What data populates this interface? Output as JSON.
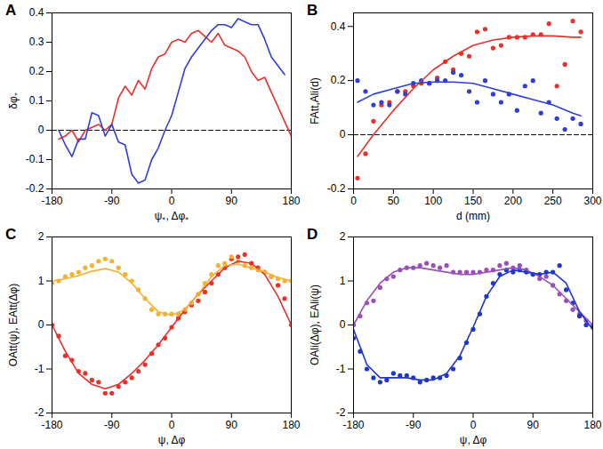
{
  "chart_data": [
    {
      "type": "line",
      "title": "A",
      "x_label": "ψ₊, Δφ₊",
      "y_label": "δφ₊",
      "xlim": [
        -180,
        180
      ],
      "xticks": [
        -180,
        -90,
        0,
        90,
        180
      ],
      "ylim": [
        -0.2,
        0.4
      ],
      "yticks": [
        -0.2,
        -0.1,
        0,
        0.1,
        0.2,
        0.3,
        0.4
      ],
      "series": [
        {
          "type": "line",
          "line_style": "dashed",
          "color": "#000000",
          "x": [
            -180,
            180
          ],
          "values": [
            0,
            0
          ]
        },
        {
          "type": "line",
          "line_style": "solid",
          "color": "#e8312b",
          "x": [
            -170,
            -160,
            -150,
            -140,
            -130,
            -120,
            -110,
            -100,
            -90,
            -80,
            -70,
            -60,
            -50,
            -40,
            -30,
            -20,
            -10,
            0,
            10,
            20,
            30,
            40,
            50,
            60,
            70,
            80,
            90,
            100,
            110,
            120,
            130,
            140,
            150,
            160,
            170,
            180
          ],
          "values": [
            -0.03,
            -0.02,
            0.0,
            -0.04,
            0.0,
            0.01,
            0.02,
            0.0,
            0.02,
            0.11,
            0.15,
            0.12,
            0.17,
            0.14,
            0.21,
            0.25,
            0.26,
            0.3,
            0.31,
            0.3,
            0.33,
            0.34,
            0.32,
            0.3,
            0.33,
            0.29,
            0.28,
            0.27,
            0.25,
            0.2,
            0.17,
            0.18,
            0.13,
            0.08,
            0.03,
            -0.02
          ]
        },
        {
          "type": "line",
          "line_style": "solid",
          "color": "#2f3fd6",
          "x": [
            -170,
            -160,
            -150,
            -140,
            -130,
            -120,
            -110,
            -100,
            -90,
            -80,
            -70,
            -60,
            -50,
            -40,
            -30,
            -20,
            -10,
            0,
            10,
            20,
            30,
            40,
            50,
            60,
            70,
            80,
            90,
            100,
            110,
            120,
            130,
            140,
            150,
            160,
            170
          ],
          "values": [
            0.0,
            -0.05,
            -0.09,
            -0.03,
            -0.03,
            0.06,
            0.05,
            -0.02,
            0.02,
            -0.04,
            -0.05,
            -0.15,
            -0.18,
            -0.17,
            -0.1,
            -0.06,
            0.0,
            0.05,
            0.13,
            0.21,
            0.25,
            0.28,
            0.31,
            0.34,
            0.36,
            0.36,
            0.35,
            0.38,
            0.37,
            0.36,
            0.36,
            0.31,
            0.25,
            0.22,
            0.19
          ]
        }
      ]
    },
    {
      "type": "line",
      "title": "B",
      "x_label": "d (mm)",
      "y_label": "FAtt,Ali(d)",
      "xlim": [
        0,
        300
      ],
      "xticks": [
        0,
        50,
        100,
        150,
        200,
        250,
        300
      ],
      "ylim": [
        -0.2,
        0.45
      ],
      "yticks": [
        -0.2,
        0,
        0.2,
        0.4
      ],
      "series": [
        {
          "type": "line",
          "line_style": "dashed",
          "color": "#000000",
          "x": [
            0,
            300
          ],
          "values": [
            0,
            0
          ]
        },
        {
          "type": "scatter",
          "marker": "circle",
          "color": "#e8312b",
          "x": [
            5,
            15,
            25,
            35,
            45,
            55,
            65,
            75,
            85,
            95,
            105,
            115,
            125,
            135,
            145,
            155,
            165,
            175,
            185,
            195,
            205,
            215,
            225,
            235,
            245,
            255,
            265,
            275,
            285
          ],
          "values": [
            -0.16,
            -0.07,
            0.05,
            0.11,
            0.12,
            0.16,
            0.16,
            0.18,
            0.19,
            0.19,
            0.21,
            0.27,
            0.24,
            0.3,
            0.29,
            0.38,
            0.39,
            0.32,
            0.33,
            0.36,
            0.36,
            0.36,
            0.37,
            0.37,
            0.41,
            0.18,
            0.26,
            0.42,
            0.38
          ]
        },
        {
          "type": "scatter",
          "marker": "circle",
          "color": "#2f3fd6",
          "x": [
            5,
            15,
            25,
            35,
            45,
            55,
            65,
            75,
            85,
            95,
            105,
            115,
            125,
            135,
            145,
            155,
            165,
            175,
            185,
            195,
            205,
            215,
            225,
            235,
            245,
            255,
            265,
            275,
            285
          ],
          "values": [
            0.2,
            0.16,
            0.11,
            0.12,
            0.11,
            0.16,
            0.15,
            0.19,
            0.2,
            0.19,
            0.2,
            0.2,
            0.23,
            0.22,
            0.16,
            0.12,
            0.2,
            0.15,
            0.12,
            0.15,
            0.09,
            0.18,
            0.2,
            0.08,
            0.12,
            0.06,
            0.02,
            0.06,
            0.04
          ]
        },
        {
          "type": "line",
          "line_style": "solid",
          "color": "#e8312b",
          "x": [
            5,
            25,
            50,
            75,
            100,
            125,
            150,
            175,
            200,
            225,
            250,
            275,
            285
          ],
          "values": [
            -0.08,
            0.0,
            0.09,
            0.17,
            0.24,
            0.29,
            0.33,
            0.35,
            0.36,
            0.365,
            0.365,
            0.36,
            0.36
          ]
        },
        {
          "type": "line",
          "line_style": "solid",
          "color": "#2f3fd6",
          "x": [
            5,
            25,
            50,
            75,
            100,
            125,
            150,
            175,
            200,
            225,
            250,
            275,
            285
          ],
          "values": [
            0.12,
            0.15,
            0.17,
            0.19,
            0.195,
            0.195,
            0.19,
            0.17,
            0.15,
            0.13,
            0.11,
            0.08,
            0.07
          ]
        }
      ]
    },
    {
      "type": "line",
      "title": "C",
      "x_label": "ψ, Δφ",
      "y_label": "OAtt(ψ), EAtt(Δφ)",
      "xlim": [
        -180,
        180
      ],
      "xticks": [
        -180,
        -90,
        0,
        90,
        180
      ],
      "ylim": [
        -2,
        2
      ],
      "yticks": [
        -2,
        -1,
        0,
        1,
        2
      ],
      "series": [
        {
          "type": "scatter",
          "marker": "circle",
          "color": "#e8312b",
          "x": [
            -180,
            -170,
            -160,
            -150,
            -140,
            -130,
            -120,
            -110,
            -100,
            -90,
            -80,
            -70,
            -60,
            -50,
            -40,
            -30,
            -20,
            -10,
            0,
            10,
            20,
            30,
            40,
            50,
            60,
            70,
            80,
            90,
            100,
            110,
            120,
            130,
            140,
            150,
            160,
            170,
            180
          ],
          "values": [
            0.0,
            -0.25,
            -0.7,
            -0.8,
            -1.05,
            -1.1,
            -1.25,
            -1.3,
            -1.55,
            -1.55,
            -1.4,
            -1.3,
            -1.2,
            -1.05,
            -0.9,
            -0.65,
            -0.45,
            -0.3,
            -0.05,
            0.15,
            0.3,
            0.45,
            0.55,
            0.75,
            0.95,
            1.15,
            1.3,
            1.5,
            1.55,
            1.6,
            1.4,
            1.3,
            1.2,
            1.1,
            0.9,
            0.6,
            0.0
          ]
        },
        {
          "type": "scatter",
          "marker": "circle",
          "color": "#f4b231",
          "x": [
            -180,
            -170,
            -160,
            -150,
            -140,
            -130,
            -120,
            -110,
            -100,
            -90,
            -80,
            -70,
            -60,
            -50,
            -40,
            -30,
            -20,
            -10,
            0,
            10,
            20,
            30,
            40,
            50,
            60,
            70,
            80,
            90,
            100,
            110,
            120,
            130,
            140,
            150,
            160,
            170,
            180
          ],
          "values": [
            0.95,
            1.0,
            1.1,
            1.15,
            1.2,
            1.3,
            1.35,
            1.45,
            1.5,
            1.45,
            1.3,
            1.15,
            1.0,
            0.8,
            0.6,
            0.35,
            0.25,
            0.25,
            0.25,
            0.25,
            0.35,
            0.5,
            0.7,
            0.95,
            1.15,
            1.35,
            1.4,
            1.55,
            1.45,
            1.35,
            1.3,
            1.25,
            1.2,
            1.1,
            1.05,
            1.0,
            1.0
          ]
        },
        {
          "type": "line",
          "line_style": "solid",
          "color": "#e8312b",
          "x": [
            -180,
            -160,
            -140,
            -120,
            -100,
            -80,
            -60,
            -40,
            -20,
            0,
            20,
            40,
            60,
            80,
            100,
            120,
            140,
            160,
            180
          ],
          "values": [
            0,
            -0.6,
            -1.1,
            -1.35,
            -1.45,
            -1.35,
            -1.1,
            -0.8,
            -0.45,
            -0.05,
            0.35,
            0.7,
            1.0,
            1.3,
            1.45,
            1.4,
            1.15,
            0.65,
            0
          ]
        },
        {
          "type": "line",
          "line_style": "solid",
          "color": "#f4b231",
          "x": [
            -180,
            -160,
            -140,
            -120,
            -100,
            -80,
            -60,
            -40,
            -20,
            0,
            20,
            40,
            60,
            80,
            100,
            120,
            140,
            160,
            180
          ],
          "values": [
            1.0,
            1.05,
            1.12,
            1.22,
            1.28,
            1.2,
            0.95,
            0.6,
            0.3,
            0.22,
            0.35,
            0.7,
            1.1,
            1.35,
            1.38,
            1.3,
            1.2,
            1.08,
            1.0
          ]
        }
      ]
    },
    {
      "type": "line",
      "title": "D",
      "x_label": "ψ, Δφ",
      "y_label": "OAli(Δφ), EAli(ψ)",
      "xlim": [
        -180,
        180
      ],
      "xticks": [
        -180,
        -90,
        0,
        90,
        180
      ],
      "ylim": [
        -2,
        2
      ],
      "yticks": [
        -2,
        -1,
        0,
        1,
        2
      ],
      "series": [
        {
          "type": "scatter",
          "marker": "circle",
          "color": "#9b4fb8",
          "x": [
            -180,
            -170,
            -160,
            -150,
            -140,
            -130,
            -120,
            -110,
            -100,
            -90,
            -80,
            -70,
            -60,
            -50,
            -40,
            -30,
            -20,
            -10,
            0,
            10,
            20,
            30,
            40,
            50,
            60,
            70,
            80,
            90,
            100,
            110,
            120,
            130,
            140,
            150,
            160,
            170,
            180
          ],
          "values": [
            0.0,
            0.2,
            0.5,
            0.55,
            0.85,
            1.05,
            1.1,
            1.25,
            1.3,
            1.3,
            1.35,
            1.4,
            1.35,
            1.3,
            1.35,
            1.2,
            1.2,
            1.2,
            1.2,
            1.2,
            1.25,
            1.25,
            1.35,
            1.4,
            1.3,
            1.35,
            1.25,
            1.15,
            1.05,
            1.1,
            0.9,
            0.7,
            0.55,
            0.35,
            0.25,
            0.1,
            0.0
          ]
        },
        {
          "type": "scatter",
          "marker": "circle",
          "color": "#1f36cc",
          "x": [
            -180,
            -170,
            -160,
            -150,
            -140,
            -130,
            -120,
            -110,
            -100,
            -90,
            -80,
            -70,
            -60,
            -50,
            -40,
            -30,
            -20,
            -10,
            0,
            10,
            20,
            30,
            40,
            50,
            60,
            70,
            80,
            90,
            100,
            110,
            120,
            130,
            140,
            150,
            160,
            170,
            180
          ],
          "values": [
            -0.3,
            -0.6,
            -1.0,
            -1.2,
            -1.3,
            -1.25,
            -1.1,
            -1.15,
            -1.15,
            -1.2,
            -1.3,
            -1.25,
            -1.2,
            -1.2,
            -1.15,
            -1.0,
            -0.75,
            -0.4,
            -0.1,
            0.25,
            0.65,
            0.95,
            1.15,
            1.25,
            1.2,
            1.25,
            1.2,
            1.15,
            1.15,
            1.2,
            1.2,
            1.35,
            0.8,
            0.5,
            0.2,
            0.0,
            -0.05
          ]
        },
        {
          "type": "line",
          "line_style": "solid",
          "color": "#9b4fb8",
          "x": [
            -180,
            -160,
            -140,
            -120,
            -100,
            -80,
            -60,
            -40,
            -20,
            0,
            20,
            40,
            60,
            80,
            100,
            120,
            140,
            160,
            180
          ],
          "values": [
            0,
            0.55,
            0.95,
            1.2,
            1.3,
            1.3,
            1.25,
            1.2,
            1.15,
            1.15,
            1.2,
            1.25,
            1.3,
            1.25,
            1.1,
            0.9,
            0.6,
            0.3,
            0
          ]
        },
        {
          "type": "line",
          "line_style": "solid",
          "color": "#1f36cc",
          "x": [
            -180,
            -160,
            -140,
            -120,
            -100,
            -80,
            -60,
            -40,
            -20,
            0,
            20,
            40,
            60,
            80,
            100,
            120,
            140,
            160,
            180
          ],
          "values": [
            -0.1,
            -0.9,
            -1.2,
            -1.2,
            -1.2,
            -1.25,
            -1.25,
            -1.1,
            -0.7,
            -0.05,
            0.65,
            1.1,
            1.25,
            1.2,
            1.15,
            1.2,
            0.95,
            0.3,
            -0.1
          ]
        }
      ]
    }
  ]
}
